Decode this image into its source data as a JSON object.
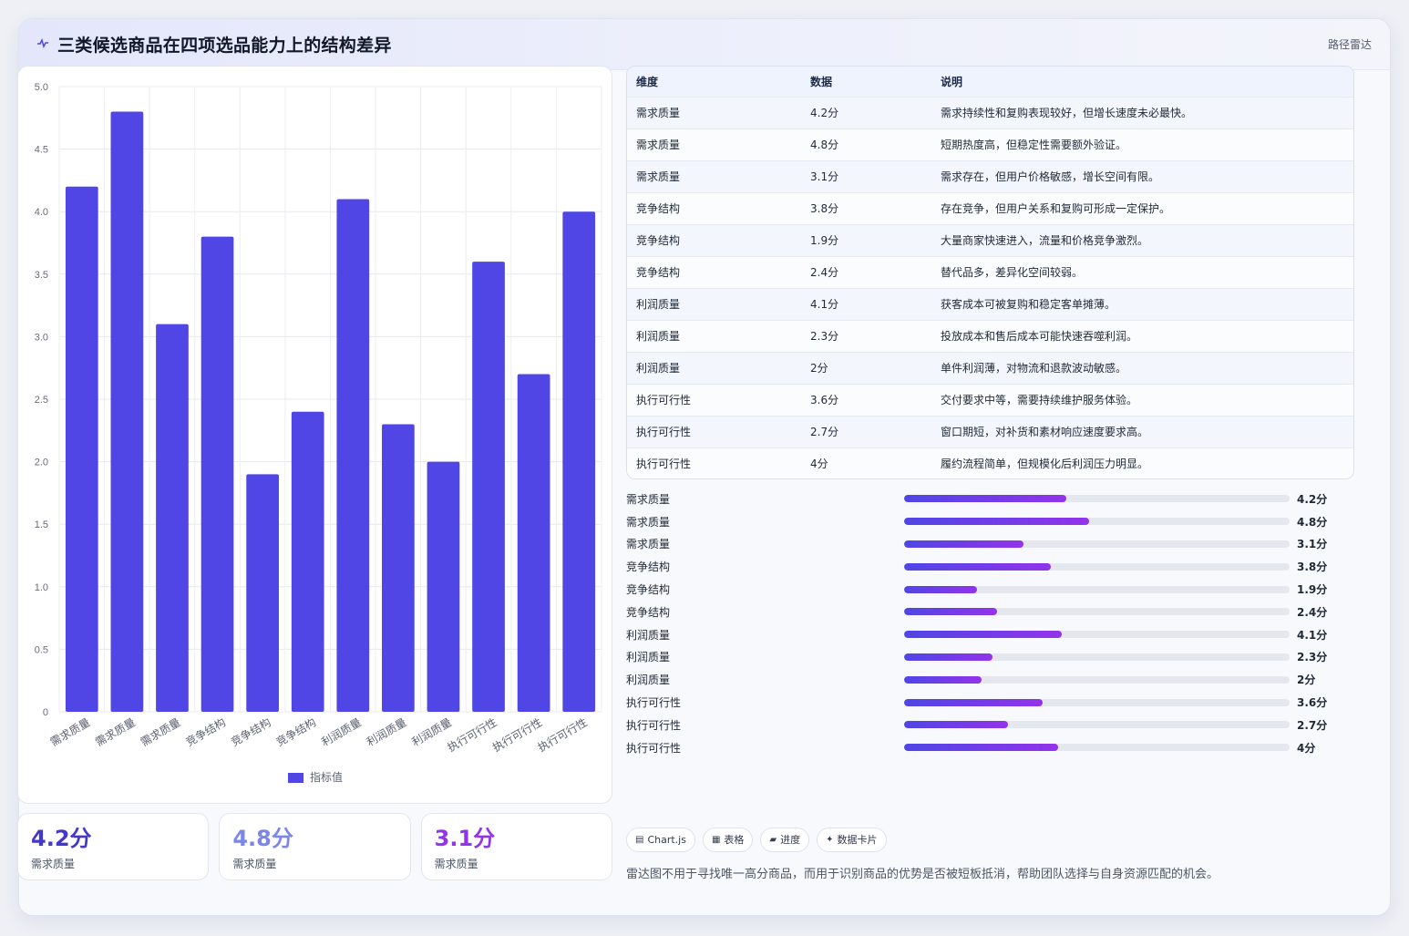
{
  "header": {
    "icon": "activity-icon",
    "title": "三类候选商品在四项选品能力上的结构差异",
    "tag": "路径雷达"
  },
  "colors": {
    "bar": "#4f46e5",
    "accent_purple": "#9333ea",
    "stat_colors": [
      "#4338ca",
      "#7b86e8",
      "#9333ea"
    ]
  },
  "chart_data": {
    "type": "bar",
    "categories": [
      "需求质量",
      "需求质量",
      "需求质量",
      "竞争结构",
      "竞争结构",
      "竞争结构",
      "利润质量",
      "利润质量",
      "利润质量",
      "执行可行性",
      "执行可行性",
      "执行可行性"
    ],
    "series": [
      {
        "name": "指标值",
        "values": [
          4.2,
          4.8,
          3.1,
          3.8,
          1.9,
          2.4,
          4.1,
          2.3,
          2.0,
          3.6,
          2.7,
          4.0
        ]
      }
    ],
    "ylim": [
      0,
      5
    ],
    "yticks": [
      "0",
      "0.5",
      "1.0",
      "1.5",
      "2.0",
      "2.5",
      "3.0",
      "3.5",
      "4.0",
      "4.5",
      "5.0"
    ],
    "legend_position": "bottom",
    "grid": true
  },
  "stats": [
    {
      "value": "4.2分",
      "label": "需求质量"
    },
    {
      "value": "4.8分",
      "label": "需求质量"
    },
    {
      "value": "3.1分",
      "label": "需求质量"
    }
  ],
  "table": {
    "headers": [
      "维度",
      "数据",
      "说明"
    ],
    "rows": [
      [
        "需求质量",
        "4.2分",
        "需求持续性和复购表现较好，但增长速度未必最快。"
      ],
      [
        "需求质量",
        "4.8分",
        "短期热度高，但稳定性需要额外验证。"
      ],
      [
        "需求质量",
        "3.1分",
        "需求存在，但用户价格敏感，增长空间有限。"
      ],
      [
        "竞争结构",
        "3.8分",
        "存在竞争，但用户关系和复购可形成一定保护。"
      ],
      [
        "竞争结构",
        "1.9分",
        "大量商家快速进入，流量和价格竞争激烈。"
      ],
      [
        "竞争结构",
        "2.4分",
        "替代品多，差异化空间较弱。"
      ],
      [
        "利润质量",
        "4.1分",
        "获客成本可被复购和稳定客单摊薄。"
      ],
      [
        "利润质量",
        "2.3分",
        "投放成本和售后成本可能快速吞噬利润。"
      ],
      [
        "利润质量",
        "2分",
        "单件利润薄，对物流和退款波动敏感。"
      ],
      [
        "执行可行性",
        "3.6分",
        "交付要求中等，需要持续维护服务体验。"
      ],
      [
        "执行可行性",
        "2.7分",
        "窗口期短，对补货和素材响应速度要求高。"
      ],
      [
        "执行可行性",
        "4分",
        "履约流程简单，但规模化后利润压力明显。"
      ]
    ]
  },
  "progress": [
    {
      "label": "需求质量",
      "value": 4.2,
      "display": "4.2分"
    },
    {
      "label": "需求质量",
      "value": 4.8,
      "display": "4.8分"
    },
    {
      "label": "需求质量",
      "value": 3.1,
      "display": "3.1分"
    },
    {
      "label": "竞争结构",
      "value": 3.8,
      "display": "3.8分"
    },
    {
      "label": "竞争结构",
      "value": 1.9,
      "display": "1.9分"
    },
    {
      "label": "竞争结构",
      "value": 2.4,
      "display": "2.4分"
    },
    {
      "label": "利润质量",
      "value": 4.1,
      "display": "4.1分"
    },
    {
      "label": "利润质量",
      "value": 2.3,
      "display": "2.3分"
    },
    {
      "label": "利润质量",
      "value": 2.0,
      "display": "2分"
    },
    {
      "label": "执行可行性",
      "value": 3.6,
      "display": "3.6分"
    },
    {
      "label": "执行可行性",
      "value": 2.7,
      "display": "2.7分"
    },
    {
      "label": "执行可行性",
      "value": 4.0,
      "display": "4分"
    }
  ],
  "progress_max": 10,
  "chips": [
    {
      "icon": "chart-icon",
      "glyph": "▤",
      "label": "Chart.js"
    },
    {
      "icon": "table-icon",
      "glyph": "▦",
      "label": "表格"
    },
    {
      "icon": "progress-icon",
      "glyph": "▰",
      "label": "进度"
    },
    {
      "icon": "sparkle-icon",
      "glyph": "✦",
      "label": "数据卡片"
    }
  ],
  "footnote": "雷达图不用于寻找唯一高分商品，而用于识别商品的优势是否被短板抵消，帮助团队选择与自身资源匹配的机会。"
}
